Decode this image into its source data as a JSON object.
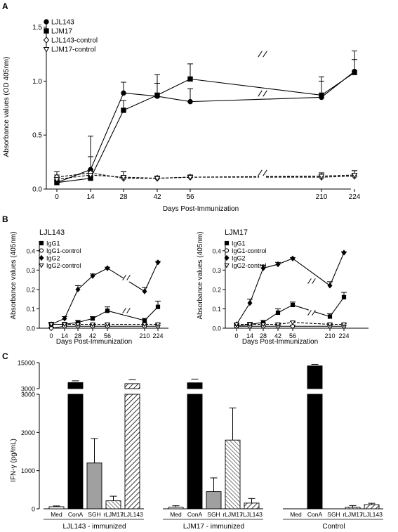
{
  "panel_labels": {
    "a": "A",
    "b": "B",
    "c": "C"
  },
  "axis_break_glyph": "//",
  "chart_data": [
    {
      "id": "A",
      "type": "line",
      "xlabel": "Days Post-Immunization",
      "ylabel": "Absorbance values (OD 405nm)",
      "x": [
        0,
        14,
        28,
        42,
        56,
        210,
        224
      ],
      "x_tick_labels": [
        "0",
        "14",
        "28",
        "42",
        "56",
        "210",
        "224"
      ],
      "y_tick_labels": [
        "0.0",
        "0.5",
        "1.0",
        "1.5"
      ],
      "ylim": [
        0,
        1.55
      ],
      "axis_break": "between 56 and 210",
      "legend_position": "top-left",
      "series": [
        {
          "name": "LJL143",
          "marker": "circle",
          "line": "solid",
          "values": [
            0.06,
            0.18,
            0.89,
            0.86,
            0.81,
            0.85,
            1.09
          ],
          "err": [
            0.02,
            0.31,
            0.1,
            0.12,
            0.12,
            0.19,
            0.19
          ]
        },
        {
          "name": "LJM17",
          "marker": "square",
          "line": "solid",
          "values": [
            0.06,
            0.1,
            0.73,
            0.87,
            1.02,
            0.87,
            1.08
          ],
          "err": [
            0.03,
            0.2,
            0.09,
            0.19,
            0.14,
            0.13,
            0.12
          ]
        },
        {
          "name": "LJL143-control",
          "marker": "diamond-open",
          "line": "dashed",
          "values": [
            0.11,
            0.15,
            0.1,
            0.1,
            0.11,
            0.11,
            0.12
          ],
          "err": [
            0.05,
            0.03,
            0.06,
            0.02,
            0.02,
            0.04,
            0.05
          ]
        },
        {
          "name": "LJM17-control",
          "marker": "triangle-down-open",
          "line": "dashed",
          "values": [
            0.09,
            0.13,
            0.11,
            0.1,
            0.11,
            0.12,
            0.13
          ],
          "err": [
            0.04,
            0.03,
            0.05,
            0.02,
            0.02,
            0.03,
            0.04
          ]
        }
      ]
    },
    {
      "id": "B1",
      "type": "line",
      "title": "LJL143",
      "xlabel": "Days Post-Immunization",
      "ylabel": "Absorbance values (405nm)",
      "x": [
        0,
        14,
        28,
        42,
        56,
        210,
        224
      ],
      "x_tick_labels": [
        "0",
        "14",
        "28",
        "42",
        "56",
        "210",
        "224"
      ],
      "y_tick_labels": [
        "0.0",
        "0.1",
        "0.2",
        "0.3",
        "0.4"
      ],
      "ylim": [
        0,
        0.45
      ],
      "axis_break": "between 56 and 210",
      "legend_position": "top-left",
      "series": [
        {
          "name": "IgG1",
          "marker": "square",
          "line": "solid",
          "values": [
            0.02,
            0.02,
            0.03,
            0.05,
            0.09,
            0.04,
            0.11
          ],
          "err": [
            0.01,
            0.01,
            0.01,
            0.01,
            0.02,
            0.01,
            0.03
          ]
        },
        {
          "name": "IgG1-control",
          "marker": "circle-open",
          "line": "solid",
          "values": [
            0.0,
            0.01,
            0.01,
            0.01,
            0.01,
            0.01,
            0.01
          ],
          "err": [
            0.005,
            0.005,
            0.005,
            0.005,
            0.005,
            0.005,
            0.005
          ]
        },
        {
          "name": "IgG2",
          "marker": "diamond",
          "line": "solid",
          "values": [
            0.02,
            0.05,
            0.2,
            0.27,
            0.31,
            0.19,
            0.34
          ],
          "err": [
            0.01,
            0.01,
            0.02,
            0.01,
            0.005,
            0.02,
            0.005
          ]
        },
        {
          "name": "IgG2-control",
          "marker": "triangle-down-open",
          "line": "dashed",
          "values": [
            0.02,
            0.02,
            0.02,
            0.02,
            0.02,
            0.02,
            0.02
          ],
          "err": [
            0.005,
            0.005,
            0.005,
            0.005,
            0.005,
            0.005,
            0.005
          ]
        }
      ]
    },
    {
      "id": "B2",
      "type": "line",
      "title": "LJM17",
      "xlabel": "Days Post-Immunization",
      "ylabel": "Absorbance values (405nm)",
      "x": [
        0,
        14,
        28,
        42,
        56,
        210,
        224
      ],
      "x_tick_labels": [
        "0",
        "14",
        "28",
        "42",
        "56",
        "210",
        "224"
      ],
      "y_tick_labels": [
        "0.0",
        "0.1",
        "0.2",
        "0.3",
        "0.4"
      ],
      "ylim": [
        0,
        0.45
      ],
      "axis_break": "between 56 and 210",
      "legend_position": "top-left",
      "series": [
        {
          "name": "IgG1",
          "marker": "square",
          "line": "solid",
          "values": [
            0.01,
            0.02,
            0.03,
            0.08,
            0.12,
            0.06,
            0.16
          ],
          "err": [
            0.005,
            0.01,
            0.01,
            0.02,
            0.015,
            0.015,
            0.025
          ]
        },
        {
          "name": "IgG1-control",
          "marker": "circle-open",
          "line": "solid",
          "values": [
            0.01,
            0.01,
            0.01,
            0.01,
            0.01,
            0.01,
            0.01
          ],
          "err": [
            0.005,
            0.005,
            0.005,
            0.005,
            0.005,
            0.005,
            0.005
          ]
        },
        {
          "name": "IgG2",
          "marker": "diamond",
          "line": "solid",
          "values": [
            0.02,
            0.13,
            0.31,
            0.33,
            0.36,
            0.22,
            0.39
          ],
          "err": [
            0.005,
            0.02,
            0.015,
            0.01,
            0.005,
            0.02,
            0.005
          ]
        },
        {
          "name": "IgG2-control",
          "marker": "triangle-down-open",
          "line": "dashed",
          "values": [
            0.02,
            0.02,
            0.02,
            0.02,
            0.03,
            0.02,
            0.02
          ],
          "err": [
            0.005,
            0.005,
            0.005,
            0.005,
            0.005,
            0.005,
            0.005
          ]
        }
      ]
    },
    {
      "id": "C",
      "type": "bar",
      "ylabel": "IFN-γ (pg/mL)",
      "y_tick_labels_lower": [
        "0",
        "1000",
        "2000",
        "3000"
      ],
      "y_tick_labels_upper": [
        "3000",
        "15000"
      ],
      "ylim_lower": [
        0,
        3000
      ],
      "ylim_upper": [
        3000,
        15000
      ],
      "axis_break": "between 3000 and 3000 (split axis)",
      "categories": [
        "Med",
        "ConA",
        "SGH",
        "rLJM17",
        "rLJL143"
      ],
      "bar_fills": [
        "white",
        "black",
        "gray",
        "white-crosshatch",
        "white-hatch"
      ],
      "groups": [
        {
          "name": "LJL143 - immunized",
          "values": [
            55,
            5800,
            1200,
            210,
            5300
          ],
          "err": [
            20,
            800,
            640,
            120,
            1800
          ]
        },
        {
          "name": "LJM17 - immunized",
          "values": [
            40,
            5700,
            450,
            1800,
            150
          ],
          "err": [
            40,
            1700,
            360,
            840,
            120
          ]
        },
        {
          "name": "Control",
          "values": [
            0,
            13500,
            0,
            40,
            110
          ],
          "err": [
            0,
            700,
            0,
            45,
            35
          ]
        }
      ]
    }
  ]
}
